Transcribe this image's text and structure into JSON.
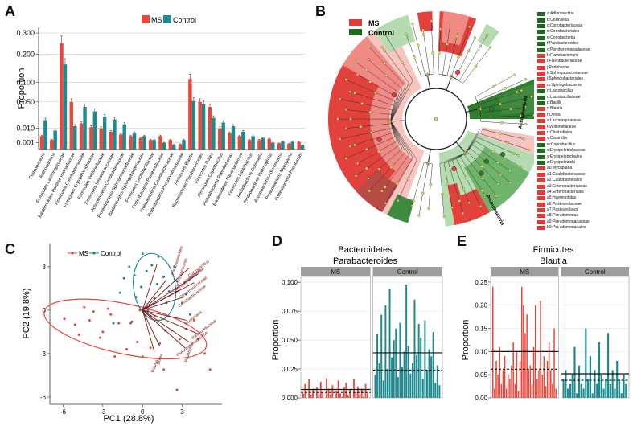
{
  "figure": {
    "panel_labels": [
      "A",
      "B",
      "C",
      "D",
      "E"
    ]
  },
  "colors": {
    "ms": "#e8473c",
    "control": "#1d8a8f",
    "ms_clado": "#e23a36",
    "control_clado": "#1e6b1e"
  },
  "chart_data": [
    {
      "panel": "A",
      "type": "bar",
      "ylabel": "Proportion",
      "y_scale": "sqrt",
      "yticks": [
        "0.300",
        "0.200",
        "0.100",
        "0.050",
        "0.010",
        "0.001"
      ],
      "ytick_values": [
        0.3,
        0.2,
        0.1,
        0.05,
        0.01,
        0.001
      ],
      "ylim": [
        0,
        0.33
      ],
      "legend": [
        "MS",
        "Control"
      ],
      "categories": [
        "Proteobacteria",
        "Actinobacteria",
        "Firmicutes Lachnospiraceae",
        "Bacteroidetes Porphyromonadaceae",
        "Firmicutes Coriobacteriaceae",
        "Firmicutes Erysipelotrichaceae",
        "Firmicutes Veillonellaceae",
        "Firmicutes Streptococcaceae",
        "Actinobacteria Coriobacteriaceae",
        "Proteobacteria Sphingomonadaceae",
        "Bacteroidetes Sphingobacteriaceae",
        "Firmicutes Lactobacillaceae",
        "Proteobacteria Pasteurellaceae",
        "Proteobacteria Caulobacteraceae",
        "Proteobacteria Pseudomonadaceae",
        "Firmicutes Blautia",
        "Bacteroidetes Parabacteroides",
        "Firmicutes Dorea",
        "Firmicutes Coprobacillus",
        "Proteobacteria Pseudomonas",
        "Bacteroidetes Flavobacterium",
        "Firmicutes Lactobacillus",
        "Actinobacteria Collinsella",
        "Proteobacteria Haemophilus",
        "Actinobacteria Adlercreutzia",
        "Proteobacteria Mycoplana",
        "Proteobacteria Pedobacter"
      ],
      "series": [
        {
          "name": "MS",
          "values": [
            0.004,
            0.002,
            0.25,
            0.05,
            0.015,
            0.011,
            0.01,
            0.007,
            0.005,
            0.004,
            0.003,
            0.002,
            0.004,
            0.002,
            0.0006,
            0.11,
            0.05,
            0.04,
            0.01,
            0.006,
            0.004,
            0.002,
            0.002,
            0.0025,
            0.0008,
            0.0007,
            0.0012
          ]
        },
        {
          "name": "Control",
          "values": [
            0.019,
            0.008,
            0.16,
            0.012,
            0.04,
            0.032,
            0.024,
            0.02,
            0.014,
            0.006,
            0.004,
            0.002,
            0.001,
            0.0005,
            0.002,
            0.052,
            0.046,
            0.022,
            0.016,
            0.012,
            0.007,
            0.004,
            0.003,
            0.001,
            0.0014,
            0.0013,
            0.0004
          ]
        }
      ]
    },
    {
      "panel": "C",
      "type": "scatter",
      "xlabel": "PC1 (28.8%)",
      "ylabel": "PC2 (19.8%)",
      "xlim": [
        -7,
        6
      ],
      "ylim": [
        -6.5,
        4.6
      ],
      "xticks": [
        -6,
        -3,
        0,
        3
      ],
      "yticks": [
        3,
        0,
        -3,
        -6
      ],
      "legend": [
        "MS",
        "Control"
      ],
      "series": [
        {
          "name": "MS",
          "points": [
            [
              -4.4,
              0.2
            ],
            [
              -4.0,
              -0.7
            ],
            [
              -3.7,
              -0.1
            ],
            [
              -3.0,
              -1.5
            ],
            [
              -2.6,
              0.1
            ],
            [
              -5.9,
              -0.6
            ],
            [
              -5.1,
              -1.0
            ],
            [
              -4.8,
              -1.7
            ],
            [
              -1.8,
              -0.9
            ],
            [
              -1.2,
              -2.7
            ],
            [
              -0.4,
              -2.2
            ],
            [
              0.0,
              -3.2
            ],
            [
              0.6,
              -2.6
            ],
            [
              1.3,
              -2.3
            ],
            [
              2.2,
              -1.4
            ],
            [
              2.8,
              -2.0
            ],
            [
              3.3,
              -1.3
            ],
            [
              3.9,
              -0.7
            ],
            [
              4.2,
              -2.0
            ],
            [
              5.1,
              -4.1
            ],
            [
              4.7,
              -3.0
            ],
            [
              2.6,
              -5.5
            ],
            [
              -0.9,
              -0.9
            ],
            [
              -2.1,
              -3.2
            ],
            [
              -3.2,
              -1.9
            ],
            [
              1.6,
              -4.1
            ],
            [
              -0.2,
              0.0
            ],
            [
              0.9,
              -0.4
            ],
            [
              -2.4,
              -0.3
            ]
          ]
        },
        {
          "name": "Control",
          "points": [
            [
              -1.4,
              2.2
            ],
            [
              -1.0,
              3.0
            ],
            [
              -0.6,
              2.4
            ],
            [
              -0.1,
              1.6
            ],
            [
              0.3,
              2.7
            ],
            [
              0.7,
              3.1
            ],
            [
              1.1,
              1.8
            ],
            [
              1.6,
              2.3
            ],
            [
              2.0,
              1.3
            ],
            [
              2.6,
              2.0
            ],
            [
              3.3,
              1.1
            ],
            [
              0.9,
              0.8
            ],
            [
              -0.5,
              0.9
            ],
            [
              0.4,
              0.0
            ],
            [
              1.2,
              3.7
            ],
            [
              2.4,
              3.0
            ],
            [
              0.0,
              3.9
            ],
            [
              -1.7,
              1.2
            ],
            [
              3.6,
              -0.3
            ],
            [
              1.8,
              0.5
            ],
            [
              -0.8,
              -0.8
            ],
            [
              -2.2,
              -0.9
            ],
            [
              1.7,
              -1.4
            ],
            [
              3.0,
              0.5
            ],
            [
              0.6,
              -0.4
            ]
          ]
        }
      ],
      "loading_labels": [
        "Parabacteroides",
        "Lachnospiraceae",
        "Coprobacillus",
        "Sphingobacteriaceae",
        "Lactobacillus",
        "Streptococcaceae",
        "Coriobacteriaceae",
        "Mycoplana",
        "Pasteurellaceae",
        "Pseudomonadaceae",
        "Dorea",
        "Blautia",
        "Pedobacter"
      ]
    },
    {
      "panel": "D",
      "type": "bar",
      "title": "Bacteroidetes",
      "subtitle": "Parabacteroides",
      "ylabel": "Proportion",
      "facets": [
        "MS",
        "Control"
      ],
      "yticks": [
        "0.100",
        "0.075",
        "0.050",
        "0.025",
        "0.000"
      ],
      "ylim": [
        0,
        0.105
      ],
      "series": [
        {
          "name": "MS",
          "values": [
            0.004,
            0.012,
            0.0,
            0.016,
            0.003,
            0.007,
            0.0,
            0.009,
            0.002,
            0.014,
            0.005,
            0.0,
            0.017,
            0.008,
            0.003,
            0.011,
            0.0,
            0.006,
            0.015,
            0.004,
            0.001,
            0.009,
            0.013,
            0.002,
            0.007,
            0.0,
            0.016,
            0.005,
            0.01,
            0.003,
            0.008,
            0.001,
            0.012,
            0.004
          ],
          "mean": 0.0073,
          "median": 0.0047
        },
        {
          "name": "Control",
          "values": [
            0.02,
            0.055,
            0.03,
            0.072,
            0.015,
            0.08,
            0.025,
            0.094,
            0.035,
            0.05,
            0.06,
            0.018,
            0.065,
            0.027,
            0.04,
            0.098,
            0.045,
            0.021,
            0.03,
            0.085,
            0.037,
            0.064,
            0.052,
            0.016,
            0.067,
            0.024,
            0.042,
            0.036,
            0.057,
            0.013,
            0.028,
            0.011
          ],
          "mean": 0.039,
          "median": 0.024
        }
      ]
    },
    {
      "panel": "E",
      "type": "bar",
      "title": "Firmicutes",
      "subtitle": "Blautia",
      "ylabel": "Proportion",
      "facets": [
        "MS",
        "Control"
      ],
      "yticks": [
        "0.25",
        "0.20",
        "0.15",
        "0.10",
        "0.05",
        "0.00"
      ],
      "ylim": [
        0,
        0.262
      ],
      "series": [
        {
          "name": "MS",
          "values": [
            0.24,
            0.02,
            0.08,
            0.05,
            0.11,
            0.03,
            0.06,
            0.09,
            0.02,
            0.05,
            0.04,
            0.07,
            0.12,
            0.03,
            0.1,
            0.015,
            0.08,
            0.24,
            0.2,
            0.14,
            0.18,
            0.06,
            0.07,
            0.03,
            0.11,
            0.2,
            0.04,
            0.06,
            0.21,
            0.05,
            0.09,
            0.025,
            0.08,
            0.12,
            0.06,
            0.03,
            0.15,
            0.02
          ],
          "mean": 0.1,
          "median": 0.062
        },
        {
          "name": "Control",
          "values": [
            0.04,
            0.06,
            0.02,
            0.03,
            0.05,
            0.11,
            0.01,
            0.07,
            0.03,
            0.02,
            0.15,
            0.04,
            0.09,
            0.01,
            0.06,
            0.03,
            0.12,
            0.05,
            0.02,
            0.04,
            0.14,
            0.03,
            0.06,
            0.02,
            0.08,
            0.04,
            0.01,
            0.05,
            0.03
          ],
          "mean": 0.052,
          "median": 0.038
        }
      ]
    }
  ],
  "cladogram": {
    "legend": [
      "MS",
      "Control"
    ],
    "ring_labels": [
      "Actinobacteria",
      "Proteobacteria"
    ],
    "items": [
      {
        "key": "a",
        "name": "Adlercreutzia",
        "group": "Control"
      },
      {
        "key": "b",
        "name": "Collinsella",
        "group": "Control"
      },
      {
        "key": "c",
        "name": "Coriobacteriaceae",
        "group": "Control"
      },
      {
        "key": "d",
        "name": "Coriobacteriales",
        "group": "Control"
      },
      {
        "key": "e",
        "name": "Coriobacteriia",
        "group": "Control"
      },
      {
        "key": "f",
        "name": "Parabacteroides",
        "group": "Control"
      },
      {
        "key": "g",
        "name": "Porphyromonadaceae",
        "group": "Control"
      },
      {
        "key": "h",
        "name": "Flavobacterium",
        "group": "MS"
      },
      {
        "key": "i",
        "name": "Flavobacteriaceae",
        "group": "MS"
      },
      {
        "key": "j",
        "name": "Pedobacter",
        "group": "MS"
      },
      {
        "key": "k",
        "name": "Sphingobacteriaceae",
        "group": "MS"
      },
      {
        "key": "l",
        "name": "Sphingobacteriales",
        "group": "MS"
      },
      {
        "key": "m",
        "name": "Sphingobacteriia",
        "group": "MS"
      },
      {
        "key": "n",
        "name": "Lactobacillus",
        "group": "Control"
      },
      {
        "key": "o",
        "name": "Lactobacillaceae",
        "group": "Control"
      },
      {
        "key": "p",
        "name": "Bacilli",
        "group": "Control"
      },
      {
        "key": "q",
        "name": "Blautia",
        "group": "MS"
      },
      {
        "key": "r",
        "name": "Dorea",
        "group": "MS"
      },
      {
        "key": "s",
        "name": "Lachnospiraceae",
        "group": "MS"
      },
      {
        "key": "t",
        "name": "Veillonellaceae",
        "group": "MS"
      },
      {
        "key": "u",
        "name": "Clostridiales",
        "group": "MS"
      },
      {
        "key": "v",
        "name": "Clostridia",
        "group": "MS"
      },
      {
        "key": "w",
        "name": "Coprobacillus",
        "group": "Control"
      },
      {
        "key": "x",
        "name": "Erysipelotrichaceae",
        "group": "Control"
      },
      {
        "key": "y",
        "name": "Erysipelotrichales",
        "group": "Control"
      },
      {
        "key": "z",
        "name": "Erysipelotrichi",
        "group": "Control"
      },
      {
        "key": "a0",
        "name": "Mycoplana",
        "group": "MS"
      },
      {
        "key": "a1",
        "name": "Caulobacteraceae",
        "group": "MS"
      },
      {
        "key": "a2",
        "name": "Caulobacterales",
        "group": "MS"
      },
      {
        "key": "a3",
        "name": "Enterobacteriaceae",
        "group": "MS"
      },
      {
        "key": "a4",
        "name": "Enterobacteriales",
        "group": "MS"
      },
      {
        "key": "a5",
        "name": "Haemophilus",
        "group": "MS"
      },
      {
        "key": "a6",
        "name": "Pasteurellaceae",
        "group": "MS"
      },
      {
        "key": "a7",
        "name": "Pasteurellales",
        "group": "MS"
      },
      {
        "key": "a8",
        "name": "Pseudomonas",
        "group": "MS"
      },
      {
        "key": "a9",
        "name": "Pseudomonadaceae",
        "group": "MS"
      },
      {
        "key": "b0",
        "name": "Pseudomonadales",
        "group": "MS"
      }
    ]
  }
}
